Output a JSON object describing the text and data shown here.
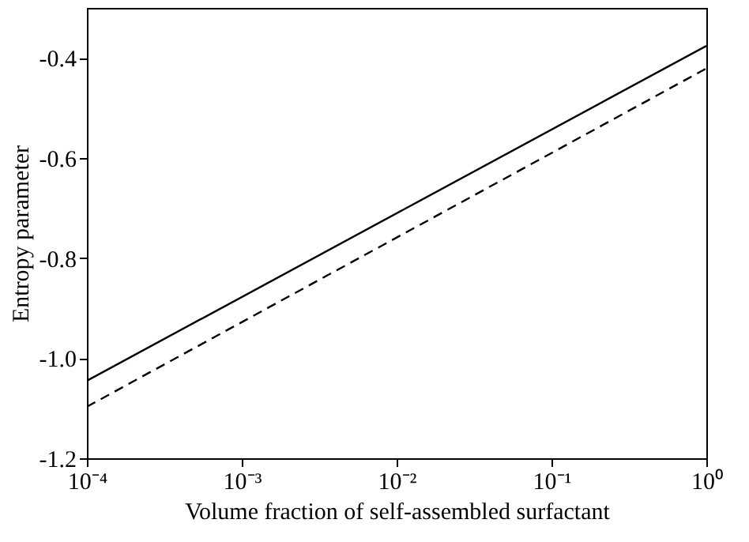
{
  "chart_data": {
    "type": "line",
    "xlabel": "Volume fraction of self-assembled surfactant",
    "ylabel": "Entropy parameter",
    "x": [
      0.0001,
      1
    ],
    "series": [
      {
        "color": "#000000",
        "line_style": "solid",
        "values": [
          -1.045,
          -0.376
        ]
      },
      {
        "color": "#000000",
        "line_style": "dashed",
        "values": [
          -1.097,
          -0.421
        ]
      }
    ],
    "log": "x",
    "xlim": [
      0.0001,
      1
    ],
    "xticks": [
      {
        "value": 0.0001,
        "label": "10⁻⁴"
      },
      {
        "value": 0.001,
        "label": "10⁻³"
      },
      {
        "value": 0.01,
        "label": "10⁻²"
      },
      {
        "value": 0.1,
        "label": "10⁻¹"
      },
      {
        "value": 1,
        "label": "10⁰"
      }
    ],
    "ylim": [
      -1.2,
      -0.3
    ],
    "yticks": [
      {
        "value": -1.2,
        "label": "-1.2"
      },
      {
        "value": -1.0,
        "label": "-1.0"
      },
      {
        "value": -0.8,
        "label": "-0.8"
      },
      {
        "value": -0.6,
        "label": "-0.6"
      },
      {
        "value": -0.4,
        "label": "-0.4"
      }
    ],
    "grid": false,
    "marker": "none"
  }
}
